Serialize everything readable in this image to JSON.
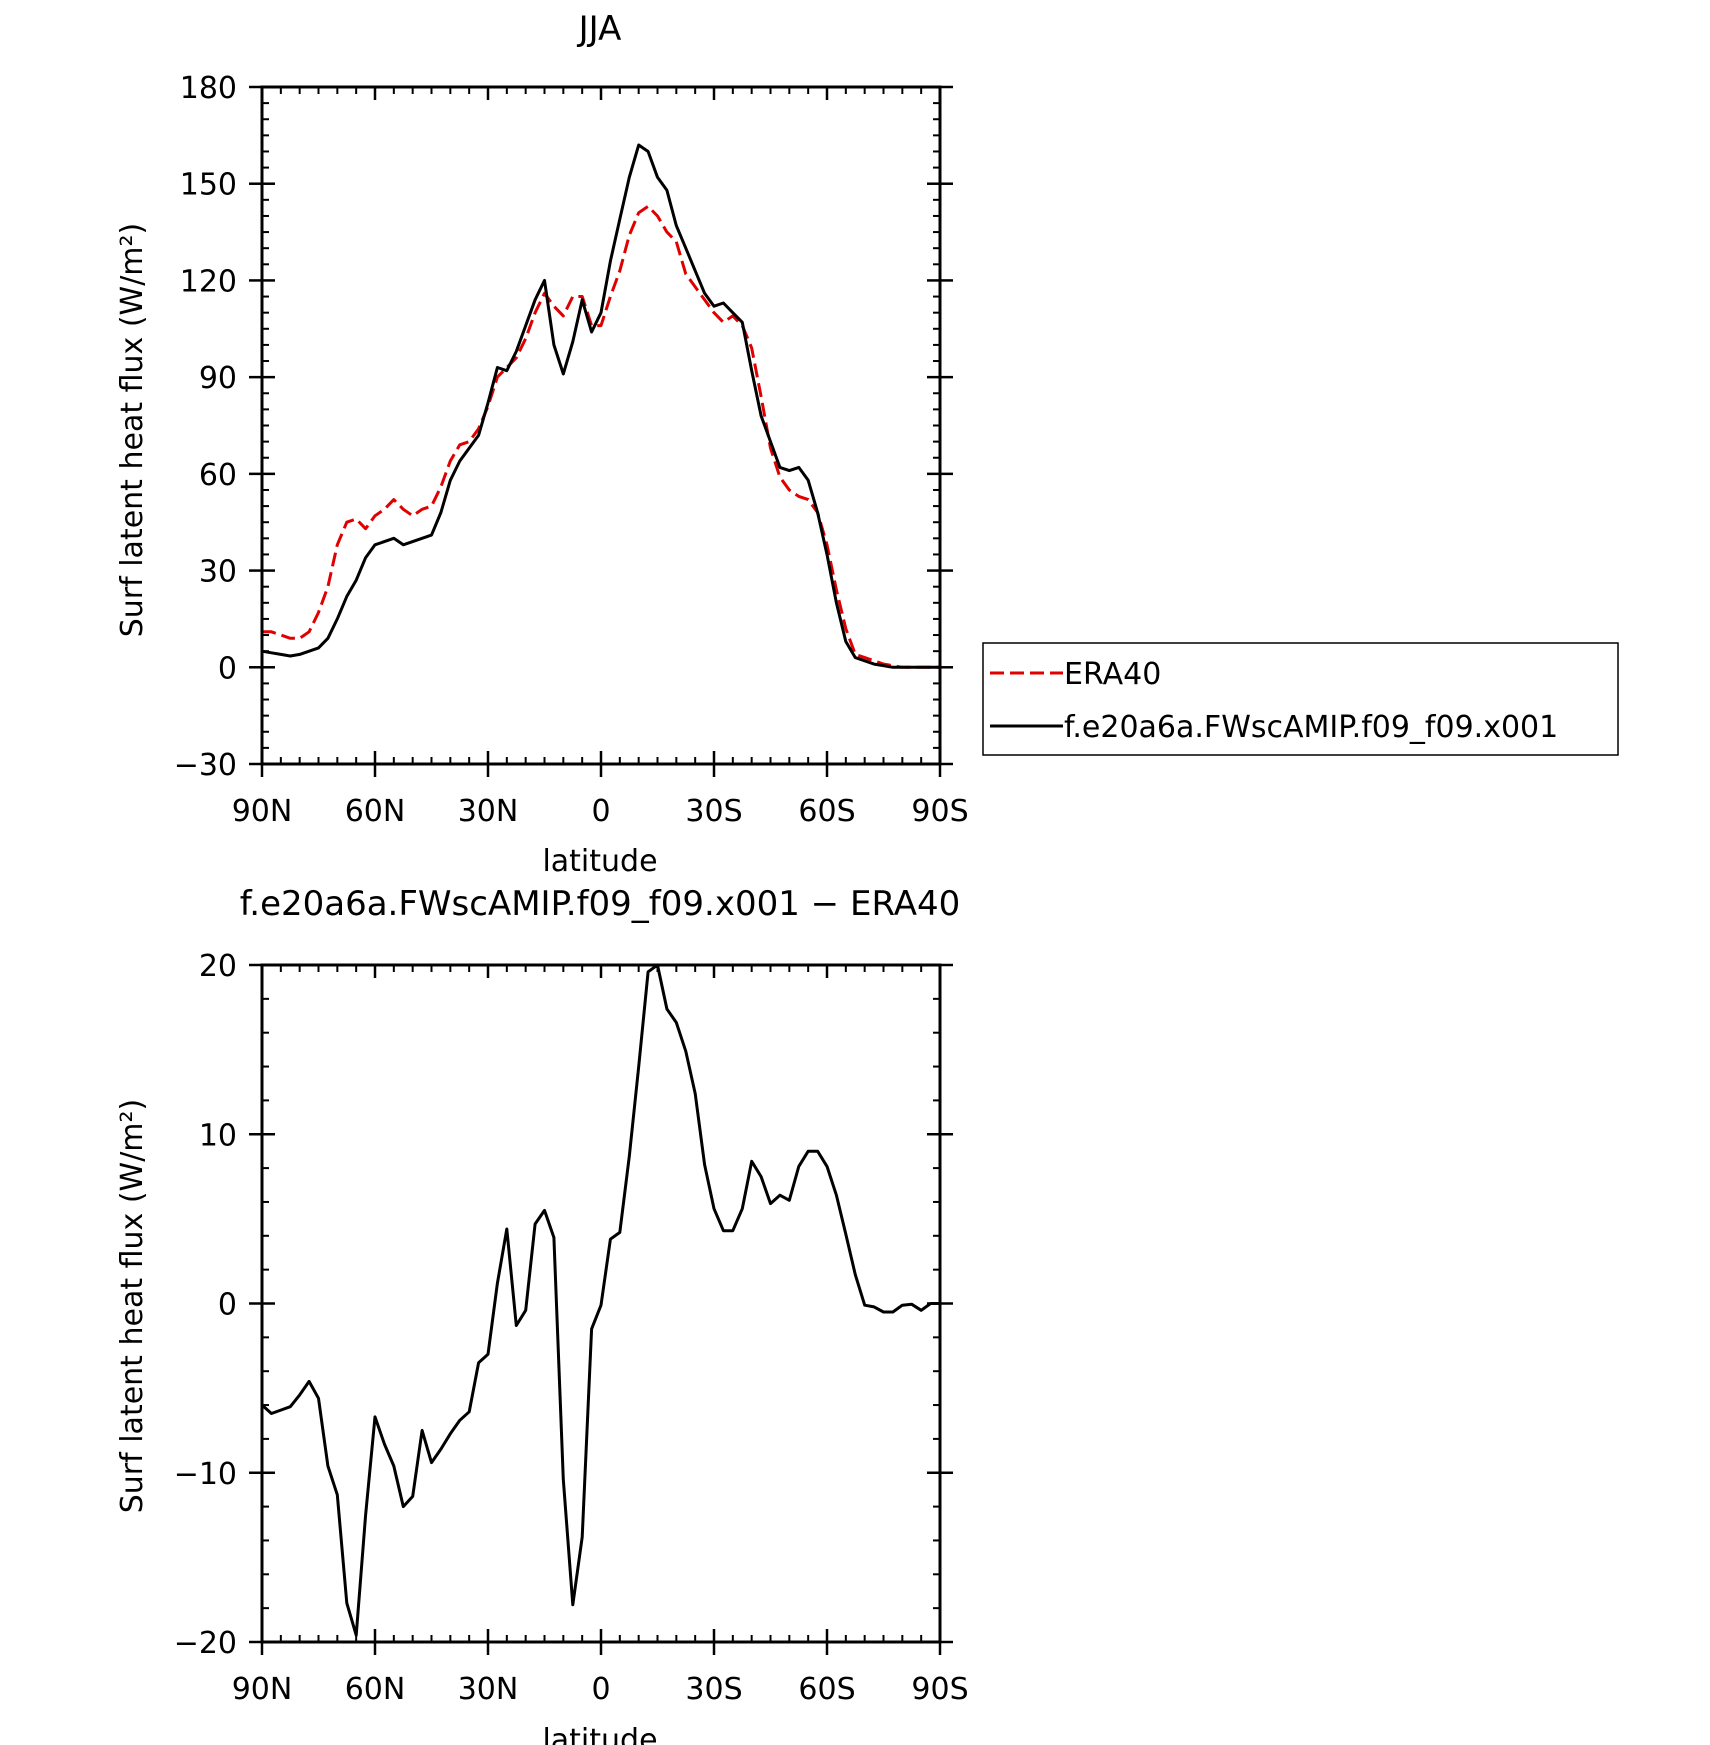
{
  "chart_data": [
    {
      "type": "line",
      "title": "JJA",
      "xlabel": "latitude",
      "ylabel": "Surf latent heat flux (W/m²)",
      "xlim": [
        90,
        -90
      ],
      "ylim": [
        -30,
        180
      ],
      "x_ticks": [
        90,
        60,
        30,
        0,
        -30,
        -60,
        -90
      ],
      "x_tick_labels": [
        "90N",
        "60N",
        "30N",
        "0",
        "30S",
        "60S",
        "90S"
      ],
      "y_ticks": [
        -30,
        0,
        30,
        60,
        90,
        120,
        150,
        180
      ],
      "y_tick_labels": [
        "−30",
        "0",
        "30",
        "60",
        "90",
        "120",
        "150",
        "180"
      ],
      "legend_position": "right",
      "series": [
        {
          "name": "ERA40",
          "color": "#e00000",
          "dash": "dashed",
          "x": [
            90,
            87.5,
            85,
            82.5,
            80,
            77.5,
            75,
            72.5,
            70,
            67.5,
            65,
            62.5,
            60,
            57.5,
            55,
            52.5,
            50,
            47.5,
            45,
            42.5,
            40,
            37.5,
            35,
            32.5,
            30,
            27.5,
            25,
            22.5,
            20,
            17.5,
            15,
            12.5,
            10,
            7.5,
            5,
            2.5,
            0,
            -2.5,
            -5,
            -7.5,
            -10,
            -12.5,
            -15,
            -17.5,
            -20,
            -22.5,
            -25,
            -27.5,
            -30,
            -32.5,
            -35,
            -37.5,
            -40,
            -42.5,
            -45,
            -47.5,
            -50,
            -52.5,
            -55,
            -57.5,
            -60,
            -62.5,
            -65,
            -67.5,
            -70,
            -72.5,
            -75,
            -77.5,
            -80,
            -82.5,
            -85,
            -87.5,
            -90
          ],
          "y": [
            11,
            11,
            10,
            9,
            9,
            11,
            17,
            25,
            38,
            45,
            46,
            43,
            47,
            49,
            52,
            49,
            47,
            49,
            50,
            56,
            64,
            69,
            70,
            74,
            81,
            90,
            93,
            96,
            102,
            110,
            116,
            112,
            109,
            115,
            115,
            106,
            106,
            115,
            123,
            134,
            141,
            143,
            140,
            135,
            132,
            122,
            118,
            114,
            110,
            107,
            109,
            106,
            99,
            84,
            68,
            59,
            55,
            53,
            52,
            48,
            38,
            24,
            12,
            4,
            3,
            2,
            1,
            0.5,
            0,
            0,
            0,
            0,
            0
          ]
        },
        {
          "name": "f.e20a6a.FWscAMIP.f09_f09.x001",
          "color": "#000000",
          "dash": "solid",
          "x": [
            90,
            87.5,
            85,
            82.5,
            80,
            77.5,
            75,
            72.5,
            70,
            67.5,
            65,
            62.5,
            60,
            57.5,
            55,
            52.5,
            50,
            47.5,
            45,
            42.5,
            40,
            37.5,
            35,
            32.5,
            30,
            27.5,
            25,
            22.5,
            20,
            17.5,
            15,
            12.5,
            10,
            7.5,
            5,
            2.5,
            0,
            -2.5,
            -5,
            -7.5,
            -10,
            -12.5,
            -15,
            -17.5,
            -20,
            -22.5,
            -25,
            -27.5,
            -30,
            -32.5,
            -35,
            -37.5,
            -40,
            -42.5,
            -45,
            -47.5,
            -50,
            -52.5,
            -55,
            -57.5,
            -60,
            -62.5,
            -65,
            -67.5,
            -70,
            -72.5,
            -75,
            -77.5,
            -80,
            -82.5,
            -85,
            -87.5,
            -90
          ],
          "y": [
            5,
            4.5,
            4,
            3.5,
            4,
            5,
            6,
            9,
            15,
            22,
            27,
            34,
            38,
            39,
            40,
            38,
            39,
            40,
            41,
            48,
            58,
            64,
            68,
            72,
            82,
            93,
            92,
            98,
            106,
            114,
            120,
            100,
            91,
            101,
            114,
            104,
            110,
            126,
            139,
            152,
            162,
            160,
            152,
            148,
            137,
            130,
            123,
            116,
            112,
            113,
            110,
            107,
            92,
            78,
            70,
            62,
            61,
            62,
            58,
            48,
            35,
            20,
            8,
            3,
            2,
            1,
            0.5,
            0,
            0,
            0,
            0,
            0,
            0
          ]
        }
      ]
    },
    {
      "type": "line",
      "title": "f.e20a6a.FWscAMIP.f09_f09.x001 − ERA40",
      "xlabel": "latitude",
      "ylabel": "Surf latent heat flux (W/m²)",
      "xlim": [
        90,
        -90
      ],
      "ylim": [
        -20,
        20
      ],
      "x_ticks": [
        90,
        60,
        30,
        0,
        -30,
        -60,
        -90
      ],
      "x_tick_labels": [
        "90N",
        "60N",
        "30N",
        "0",
        "30S",
        "60S",
        "90S"
      ],
      "y_ticks": [
        -20,
        -10,
        0,
        10,
        20
      ],
      "y_tick_labels": [
        "−20",
        "−10",
        "0",
        "10",
        "20"
      ],
      "series": [
        {
          "color": "#000000",
          "dash": "solid",
          "x": [
            90,
            87.5,
            85,
            82.5,
            80,
            77.5,
            75,
            72.5,
            70,
            67.5,
            65,
            62.5,
            60,
            57.5,
            55,
            52.5,
            50,
            47.5,
            45,
            42.5,
            40,
            37.5,
            35,
            32.5,
            30,
            27.5,
            25,
            22.5,
            20,
            17.5,
            15,
            12.5,
            10,
            7.5,
            5,
            2.5,
            0,
            -2.5,
            -5,
            -7.5,
            -10,
            -12.5,
            -15,
            -17.5,
            -20,
            -22.5,
            -25,
            -27.5,
            -30,
            -32.5,
            -35,
            -37.5,
            -40,
            -42.5,
            -45,
            -47.5,
            -50,
            -52.5,
            -55,
            -57.5,
            -60,
            -62.5,
            -65,
            -67.5,
            -70,
            -72.5,
            -75,
            -77.5,
            -80,
            -82.5,
            -85,
            -87.5,
            -90
          ],
          "y": [
            -6,
            -6.5,
            -6.3,
            -6.1,
            -5.4,
            -4.6,
            -5.6,
            -9.6,
            -11.3,
            -17.7,
            -19.6,
            -12.5,
            -6.7,
            -8.3,
            -9.6,
            -12.0,
            -11.4,
            -7.5,
            -9.4,
            -8.6,
            -7.7,
            -6.9,
            -6.4,
            -3.5,
            -3.0,
            1.2,
            4.4,
            -1.3,
            -0.4,
            4.7,
            5.5,
            3.9,
            -10.4,
            -17.8,
            -13.8,
            -1.5,
            -0.1,
            3.8,
            4.2,
            8.7,
            14.0,
            19.6,
            20.0,
            17.4,
            16.6,
            14.9,
            12.4,
            8.2,
            5.6,
            4.3,
            4.3,
            5.6,
            8.4,
            7.5,
            5.9,
            6.4,
            6.1,
            8.1,
            9.0,
            9.0,
            8.1,
            6.4,
            4.1,
            1.7,
            -0.1,
            -0.2,
            -0.5,
            -0.5,
            -0.1,
            -0.05,
            -0.4,
            0,
            0
          ]
        }
      ]
    }
  ]
}
